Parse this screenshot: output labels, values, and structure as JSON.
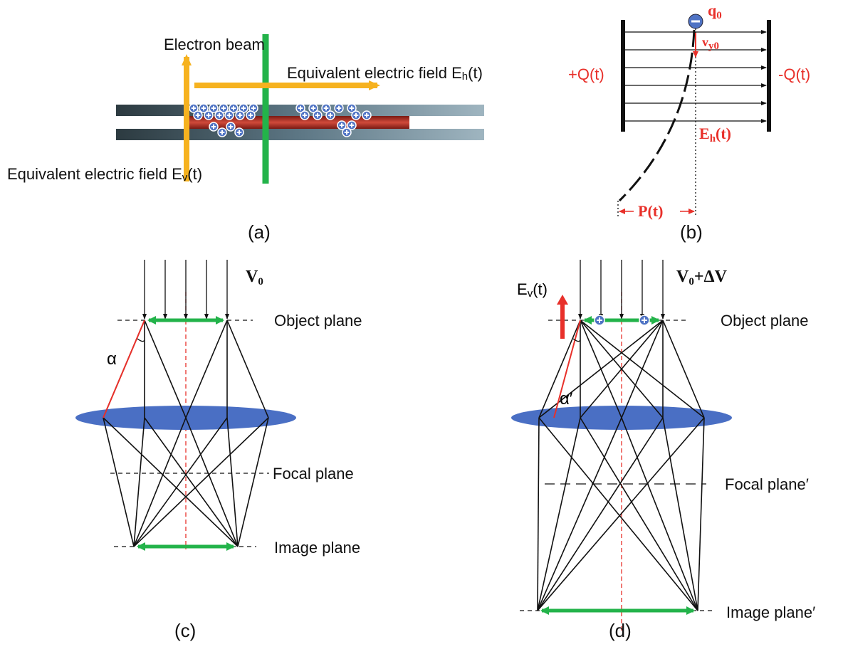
{
  "panel_a": {
    "label": "(a)",
    "electron_beam": "Electron beam",
    "field_h": {
      "base": "Equivalent electric field E",
      "sub": "h",
      "tail": "(t)"
    },
    "field_v": {
      "base": "Equivalent electric field E",
      "sub": "v",
      "tail": "(t)"
    }
  },
  "panel_b": {
    "label": "(b)",
    "charge": {
      "base": "q",
      "sub": "0"
    },
    "velocity": {
      "base": "v",
      "sub": "y0"
    },
    "plate_left": "+Q(t)",
    "plate_right": "-Q(t)",
    "field": {
      "base": "E",
      "sub": "h",
      "tail": "(t)"
    },
    "displacement": "P(t)"
  },
  "panel_c": {
    "label": "(c)",
    "voltage": {
      "base": "V",
      "sub": "0"
    },
    "object_plane": "Object plane",
    "angle": "α",
    "focal_plane": "Focal plane",
    "image_plane": "Image plane"
  },
  "panel_d": {
    "label": "(d)",
    "voltage": {
      "base": "V",
      "sub": "0",
      "tail": "+ΔV"
    },
    "field": {
      "base": "E",
      "sub": "v",
      "tail": "(t)"
    },
    "object_plane": "Object plane",
    "angle": "α′",
    "focal_plane": "Focal plane′",
    "image_plane": "Image plane′"
  }
}
